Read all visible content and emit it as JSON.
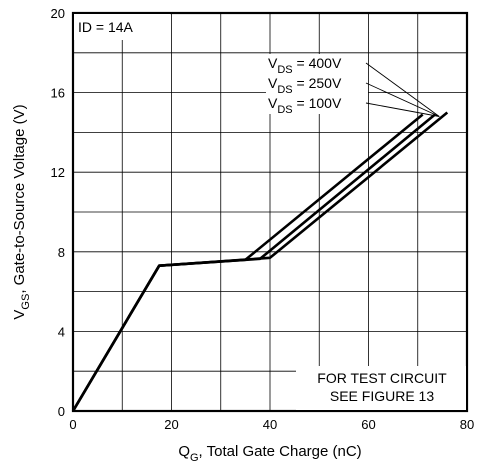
{
  "chart_data": {
    "type": "line",
    "title": "",
    "xlabel": {
      "main": "Q",
      "sub": "G",
      "rest": ", Total Gate Charge (nC)"
    },
    "ylabel": {
      "main": "V",
      "sub": "GS",
      "rest": ", Gate-to-Source Voltage (V)"
    },
    "xlim": [
      0,
      80
    ],
    "ylim": [
      0,
      20
    ],
    "x_ticks": [
      0,
      20,
      40,
      60,
      80
    ],
    "y_ticks": [
      0,
      4,
      8,
      12,
      16,
      20
    ],
    "grid": true,
    "condition": "ID = 14A",
    "note_lines": [
      "FOR TEST CIRCUIT",
      "SEE FIGURE 13"
    ],
    "series": [
      {
        "name": "VDS = 400V",
        "label_main": "V",
        "label_sub": "DS",
        "label_rest": " = 400V",
        "x": [
          0,
          17.5,
          35,
          71
        ],
        "y": [
          0,
          7.3,
          7.6,
          14.9
        ]
      },
      {
        "name": "VDS = 250V",
        "label_main": "V",
        "label_sub": "DS",
        "label_rest": " = 250V",
        "x": [
          0,
          17.5,
          38,
          73.5
        ],
        "y": [
          0,
          7.3,
          7.65,
          14.9
        ]
      },
      {
        "name": "VDS = 100V",
        "label_main": "V",
        "label_sub": "DS",
        "label_rest": " = 100V",
        "x": [
          0,
          17.5,
          40,
          76
        ],
        "y": [
          0,
          7.3,
          7.7,
          15.0
        ]
      }
    ]
  }
}
